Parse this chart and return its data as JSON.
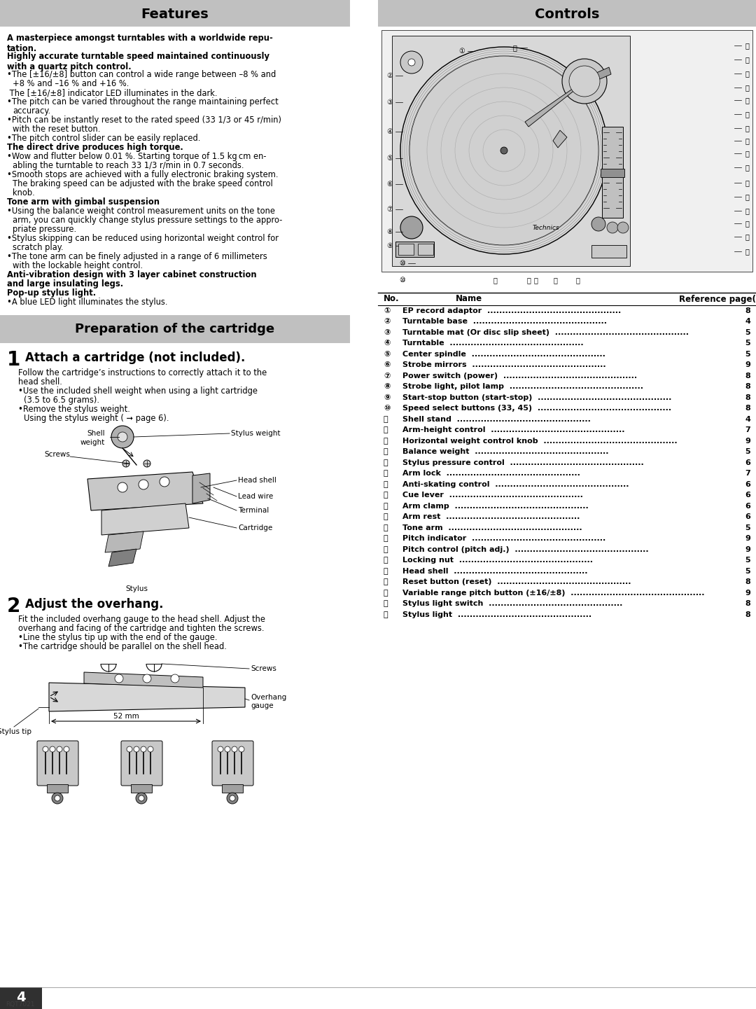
{
  "page_bg": "#ffffff",
  "header_bg": "#c0c0c0",
  "body_text_color": "#000000",
  "page_number": "4",
  "page_code": "RQT7021",
  "features_title": "Features",
  "controls_title": "Controls",
  "prep_title": "Preparation of the cartridge",
  "controls_items": [
    [
      "①",
      "EP record adaptor",
      "8"
    ],
    [
      "②",
      "Turntable base",
      "4"
    ],
    [
      "③",
      "Turntable mat (Or disc slip sheet)",
      "5"
    ],
    [
      "④",
      "Turntable",
      "5"
    ],
    [
      "⑤",
      "Center spindle",
      "5"
    ],
    [
      "⑥",
      "Strobe mirrors",
      "9"
    ],
    [
      "⑦",
      "Power switch (power)",
      "8"
    ],
    [
      "⑧",
      "Strobe light, pilot lamp",
      "8"
    ],
    [
      "⑨",
      "Start-stop button (start-stop)",
      "8"
    ],
    [
      "⑩",
      "Speed select buttons (33, 45)",
      "8"
    ],
    [
      "⑪",
      "Shell stand",
      "4"
    ],
    [
      "⑫",
      "Arm-height control",
      "7"
    ],
    [
      "⑬",
      "Horizontal weight control knob",
      "9"
    ],
    [
      "⑭",
      "Balance weight",
      "5"
    ],
    [
      "⑮",
      "Stylus pressure control",
      "6"
    ],
    [
      "⑯",
      "Arm lock",
      "7"
    ],
    [
      "⑰",
      "Anti-skating control",
      "6"
    ],
    [
      "⑱",
      "Cue lever",
      "6"
    ],
    [
      "⑲",
      "Arm clamp",
      "6"
    ],
    [
      "⑳",
      "Arm rest",
      "6"
    ],
    [
      "⑴",
      "Tone arm",
      "5"
    ],
    [
      "⑵",
      "Pitch indicator",
      "9"
    ],
    [
      "⑶",
      "Pitch control (pitch adj.)",
      "9"
    ],
    [
      "⑷",
      "Locking nut",
      "5"
    ],
    [
      "⑸",
      "Head shell",
      "5"
    ],
    [
      "⑹",
      "Reset button (reset)",
      "8"
    ],
    [
      "⑺",
      "Variable range pitch button (±16/±8)",
      "9"
    ],
    [
      "⑻",
      "Stylus light switch",
      "8"
    ],
    [
      "⑼",
      "Stylus light",
      "8"
    ]
  ]
}
